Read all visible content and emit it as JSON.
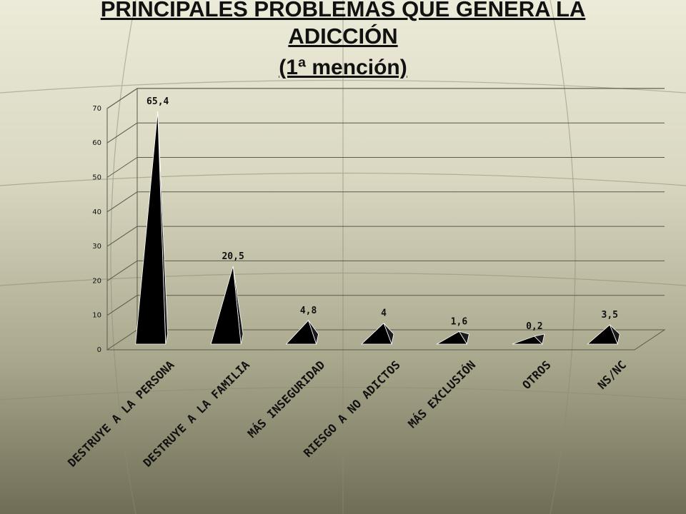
{
  "title": {
    "line1": "PRINCIPALES PROBLEMAS QUE GENERA LA",
    "line2": "ADICCIÓN",
    "line3": "(1ª mención)"
  },
  "chart_data": {
    "type": "bar",
    "style": "3d-pyramid",
    "title": "PRINCIPALES PROBLEMAS QUE GENERA LA ADICCIÓN (1ª mención)",
    "categories": [
      "DESTRUYE A LA PERSONA",
      "DESTRUYE A LA FAMILIA",
      "MÁS INSEGURIDAD",
      "RIESGO A NO ADICTOS",
      "MÁS EXCLUSIÓN",
      "OTROS",
      "NS/NC"
    ],
    "values": [
      65.4,
      20.5,
      4.8,
      4,
      1.6,
      0.2,
      3.5
    ],
    "data_labels": [
      "65,4",
      "20,5",
      "4,8",
      "4",
      "1,6",
      "0,2",
      "3,5"
    ],
    "yticks": [
      "0",
      "10",
      "20",
      "30",
      "40",
      "50",
      "60",
      "70"
    ],
    "ylim": [
      0,
      70
    ],
    "grid": true,
    "legend": "none",
    "bar_color": "#000000"
  }
}
